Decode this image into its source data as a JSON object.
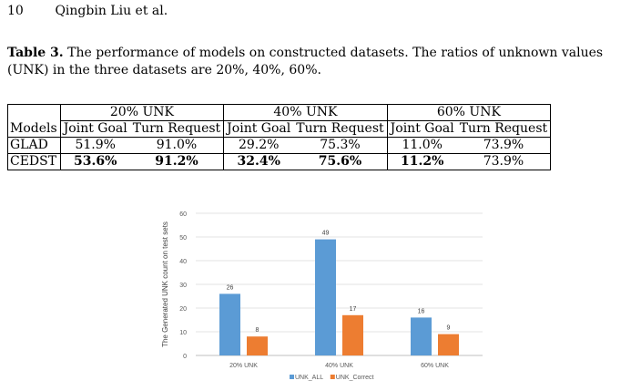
{
  "header": {
    "page_number": "10",
    "authors": "Qingbin Liu et al."
  },
  "caption": {
    "label": "Table 3.",
    "text": " The performance of models on constructed datasets. The ratios of unknown values (UNK) in the three datasets are 20%, 40%, 60%."
  },
  "table": {
    "groups": [
      "20% UNK",
      "40% UNK",
      "60% UNK"
    ],
    "models_header": "Models",
    "subheaders": [
      "Joint Goal",
      "Turn Request"
    ],
    "rows": [
      {
        "model": "GLAD",
        "values": [
          "51.9%",
          "91.0%",
          "29.2%",
          "75.3%",
          "11.0%",
          "73.9%"
        ],
        "bold": [
          false,
          false,
          false,
          false,
          false,
          false
        ]
      },
      {
        "model": "CEDST",
        "values": [
          "53.6%",
          "91.2%",
          "32.4%",
          "75.6%",
          "11.2%",
          "73.9%"
        ],
        "bold": [
          true,
          true,
          true,
          true,
          true,
          false
        ]
      }
    ]
  },
  "chart_data": {
    "type": "bar",
    "title": "",
    "xlabel": "",
    "ylabel": "The Generated UNK count on test sets",
    "categories": [
      "20% UNK",
      "40% UNK",
      "60% UNK"
    ],
    "series": [
      {
        "name": "UNK_ALL",
        "values": [
          26,
          49,
          16
        ],
        "color": "#5b9bd5"
      },
      {
        "name": "UNK_Correct",
        "values": [
          8,
          17,
          9
        ],
        "color": "#ed7d31"
      }
    ],
    "ylim": [
      0,
      60
    ],
    "yticks": [
      0,
      10,
      20,
      30,
      40,
      50,
      60
    ],
    "grid": true,
    "legend": "bottom"
  }
}
